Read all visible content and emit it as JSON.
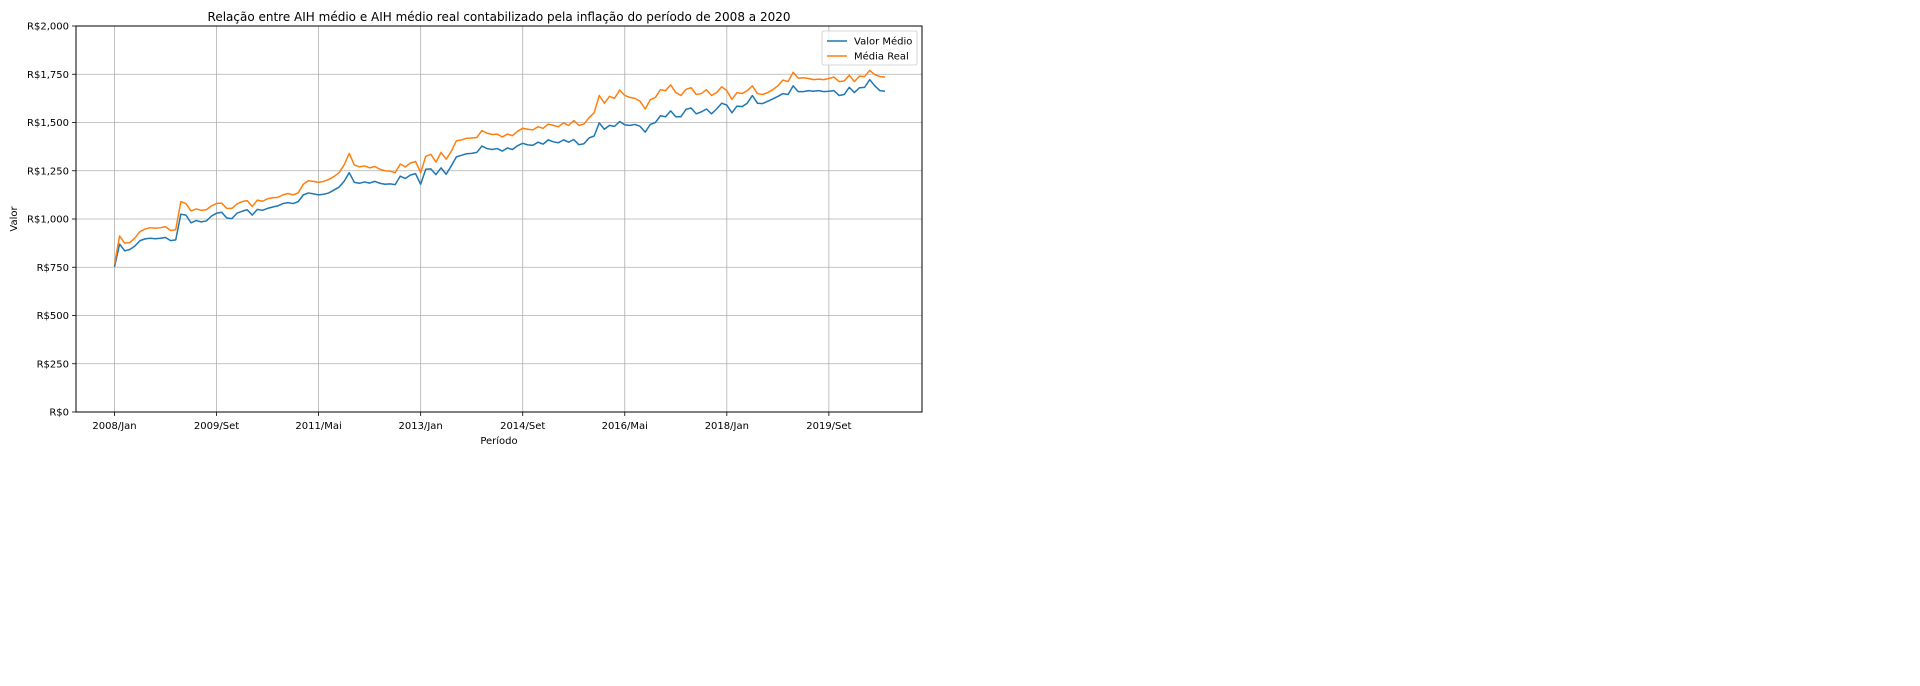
{
  "chart_data": {
    "type": "line",
    "title": "Relação entre AIH médio e AIH médio real contabilizado pela inflação do período de 2008 a 2020",
    "xlabel": "Período",
    "ylabel": "Valor",
    "x_tick_labels": [
      "2008/Jan",
      "2009/Set",
      "2011/Mai",
      "2013/Jan",
      "2014/Set",
      "2016/Mai",
      "2018/Jan",
      "2019/Set"
    ],
    "y_tick_labels": [
      "R$0",
      "R$250",
      "R$500",
      "R$750",
      "R$1,000",
      "R$1,250",
      "R$1,500",
      "R$1,750",
      "R$2,000"
    ],
    "y_tick_values": [
      0,
      250,
      500,
      750,
      1000,
      1250,
      1500,
      1750,
      2000
    ],
    "ylim": [
      0,
      2000
    ],
    "grid": true,
    "legend_position": "top-right",
    "x_start": "2008/Jan",
    "x_end": "2020/Mar",
    "series": [
      {
        "name": "Valor Médio",
        "color": "#1f77b4",
        "values": [
          752,
          870,
          835,
          842,
          860,
          888,
          897,
          900,
          898,
          900,
          904,
          888,
          892,
          1025,
          1020,
          980,
          992,
          985,
          990,
          1015,
          1030,
          1035,
          1005,
          1002,
          1030,
          1040,
          1048,
          1020,
          1050,
          1045,
          1055,
          1062,
          1068,
          1080,
          1085,
          1080,
          1090,
          1125,
          1135,
          1130,
          1125,
          1128,
          1135,
          1150,
          1165,
          1195,
          1240,
          1190,
          1185,
          1192,
          1186,
          1195,
          1185,
          1180,
          1182,
          1178,
          1222,
          1210,
          1228,
          1235,
          1180,
          1258,
          1260,
          1230,
          1265,
          1232,
          1275,
          1322,
          1330,
          1338,
          1340,
          1345,
          1378,
          1365,
          1360,
          1365,
          1352,
          1368,
          1360,
          1380,
          1392,
          1384,
          1382,
          1398,
          1388,
          1410,
          1400,
          1395,
          1410,
          1398,
          1412,
          1385,
          1390,
          1420,
          1430,
          1498,
          1465,
          1485,
          1480,
          1505,
          1488,
          1485,
          1490,
          1480,
          1450,
          1490,
          1500,
          1535,
          1530,
          1560,
          1530,
          1530,
          1568,
          1575,
          1545,
          1555,
          1570,
          1545,
          1570,
          1600,
          1590,
          1550,
          1585,
          1582,
          1600,
          1640,
          1600,
          1598,
          1610,
          1622,
          1635,
          1650,
          1645,
          1690,
          1660,
          1660,
          1665,
          1662,
          1665,
          1660,
          1662,
          1665,
          1640,
          1645,
          1682,
          1655,
          1680,
          1682,
          1722,
          1690,
          1665,
          1662
        ]
      },
      {
        "name": "Média Real",
        "color": "#ff7f0e",
        "values": [
          765,
          912,
          875,
          878,
          902,
          935,
          948,
          955,
          952,
          955,
          960,
          940,
          945,
          1090,
          1080,
          1042,
          1052,
          1045,
          1048,
          1068,
          1080,
          1082,
          1055,
          1055,
          1078,
          1090,
          1095,
          1065,
          1098,
          1092,
          1105,
          1110,
          1112,
          1125,
          1132,
          1125,
          1135,
          1180,
          1198,
          1195,
          1190,
          1195,
          1205,
          1220,
          1240,
          1280,
          1340,
          1280,
          1270,
          1275,
          1265,
          1272,
          1258,
          1250,
          1248,
          1240,
          1285,
          1270,
          1290,
          1298,
          1240,
          1325,
          1335,
          1295,
          1345,
          1310,
          1350,
          1405,
          1410,
          1418,
          1420,
          1422,
          1458,
          1445,
          1438,
          1440,
          1425,
          1440,
          1432,
          1455,
          1470,
          1465,
          1462,
          1478,
          1470,
          1492,
          1485,
          1478,
          1498,
          1485,
          1510,
          1485,
          1492,
          1525,
          1550,
          1640,
          1600,
          1635,
          1625,
          1668,
          1640,
          1630,
          1625,
          1610,
          1570,
          1618,
          1630,
          1670,
          1665,
          1695,
          1655,
          1640,
          1672,
          1680,
          1645,
          1650,
          1670,
          1640,
          1655,
          1685,
          1665,
          1620,
          1655,
          1650,
          1665,
          1690,
          1650,
          1645,
          1655,
          1670,
          1690,
          1720,
          1712,
          1760,
          1730,
          1732,
          1728,
          1722,
          1725,
          1722,
          1728,
          1735,
          1712,
          1715,
          1745,
          1712,
          1740,
          1738,
          1770,
          1748,
          1738,
          1735
        ]
      }
    ]
  }
}
